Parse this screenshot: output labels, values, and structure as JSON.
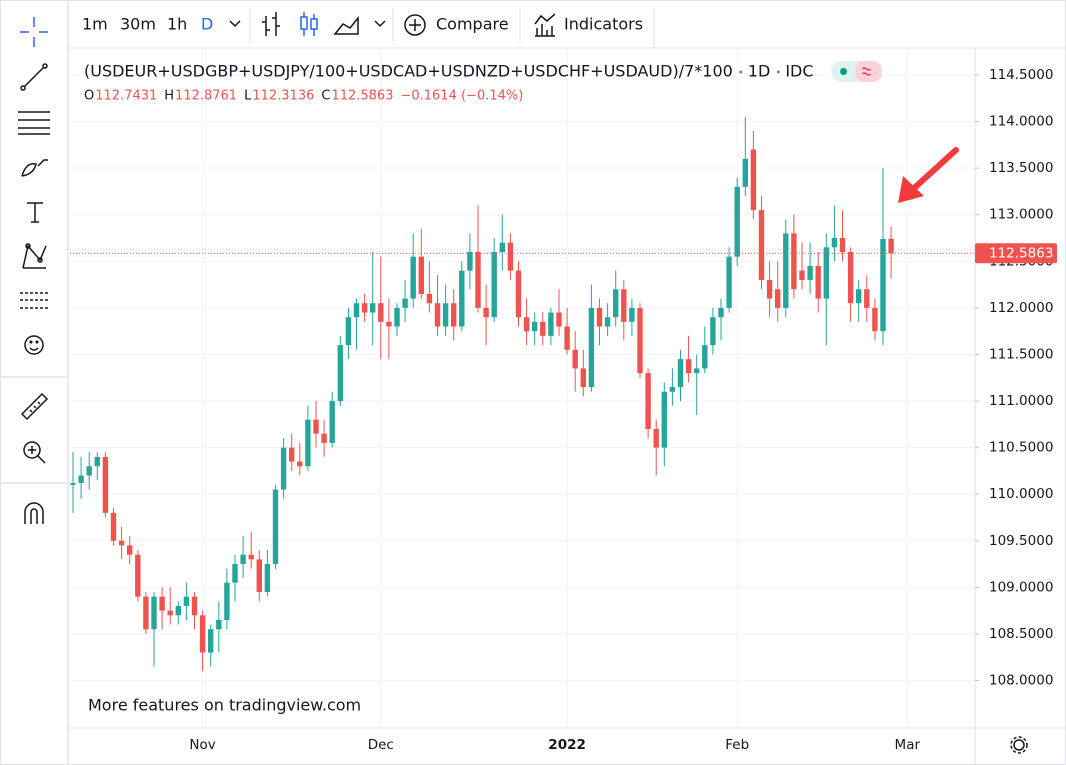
{
  "toolbar": {
    "intervals": [
      "1m",
      "30m",
      "1h",
      "D"
    ],
    "compare": "Compare",
    "indicators": "Indicators"
  },
  "chart_data": {
    "type": "candlestick",
    "title": "(USDEUR+USDGBP+USDJPY/100+USDCAD+USDNZD+USDCHF+USDAUD)/7*100",
    "interval": "1D",
    "source": "IDC",
    "legend": [
      {
        "label": "O",
        "value": 112.7431
      },
      {
        "label": "H",
        "value": 112.8761
      },
      {
        "label": "L",
        "value": 112.3136
      },
      {
        "label": "C",
        "value": 112.5863
      }
    ],
    "change": "−0.1614 (−0.14%)",
    "watermark": "More features on tradingview.com",
    "up_color": "#26a69a",
    "down_color": "#ef5350",
    "grid": true,
    "last_price": 112.5863,
    "categories": [
      null,
      null,
      null,
      null,
      null,
      null,
      null,
      null,
      null,
      null,
      null,
      null,
      null,
      null,
      null,
      null,
      "Nov",
      null,
      null,
      null,
      null,
      null,
      null,
      null,
      null,
      null,
      null,
      null,
      null,
      null,
      null,
      null,
      null,
      null,
      null,
      null,
      null,
      null,
      "Dec",
      null,
      null,
      null,
      null,
      null,
      null,
      null,
      null,
      null,
      null,
      null,
      null,
      null,
      null,
      null,
      null,
      null,
      null,
      null,
      null,
      null,
      null,
      "2022",
      null,
      null,
      null,
      null,
      null,
      null,
      null,
      null,
      null,
      null,
      null,
      null,
      null,
      null,
      null,
      null,
      null,
      null,
      null,
      null,
      "Feb",
      null,
      null,
      null,
      null,
      null,
      null,
      null,
      null,
      null,
      null,
      null,
      null,
      null,
      null,
      null,
      null,
      null,
      null,
      null,
      null,
      "Mar"
    ],
    "open": [
      110.1,
      110.12,
      110.2,
      110.3,
      110.4,
      109.8,
      109.5,
      109.45,
      109.35,
      108.9,
      108.55,
      108.9,
      108.75,
      108.7,
      108.8,
      108.9,
      108.7,
      108.3,
      108.55,
      108.65,
      109.05,
      109.25,
      109.35,
      109.3,
      108.95,
      109.25,
      110.05,
      110.5,
      110.35,
      110.3,
      110.8,
      110.65,
      110.55,
      111.0,
      111.6,
      111.9,
      112.05,
      111.95,
      112.05,
      111.85,
      111.8,
      112.0,
      112.1,
      112.55,
      112.15,
      112.05,
      111.8,
      112.05,
      111.8,
      112.4,
      112.6,
      112.0,
      111.9,
      112.6,
      112.7,
      112.4,
      111.9,
      111.75,
      111.85,
      111.7,
      111.95,
      111.8,
      111.55,
      111.35,
      111.15,
      112.0,
      111.8,
      111.9,
      112.2,
      111.85,
      112.0,
      111.3,
      110.7,
      110.5,
      111.1,
      111.15,
      111.45,
      111.3,
      111.35,
      111.6,
      111.9,
      112.0,
      112.55,
      113.3,
      113.7,
      113.05,
      112.3,
      112.2,
      112.0,
      112.8,
      112.4,
      112.3,
      112.45,
      112.1,
      112.65,
      112.75,
      112.6,
      112.05,
      112.2,
      112.0,
      111.75,
      112.7431,
      null,
      null
    ],
    "high": [
      110.45,
      110.4,
      110.45,
      110.45,
      110.45,
      109.85,
      109.65,
      109.55,
      109.4,
      108.95,
      108.95,
      109.0,
      109.0,
      108.85,
      109.05,
      108.95,
      108.75,
      108.6,
      108.85,
      109.2,
      109.35,
      109.55,
      109.6,
      109.4,
      109.4,
      110.1,
      110.6,
      110.65,
      110.55,
      110.95,
      111.0,
      110.8,
      111.1,
      111.7,
      112.0,
      112.1,
      112.15,
      112.6,
      112.55,
      112.1,
      112.05,
      112.3,
      112.8,
      112.85,
      112.5,
      112.35,
      112.25,
      112.2,
      112.5,
      112.8,
      113.1,
      112.25,
      112.75,
      113.0,
      112.8,
      112.5,
      112.1,
      111.95,
      111.95,
      112.0,
      112.2,
      112.0,
      111.75,
      111.55,
      112.25,
      112.1,
      112.05,
      112.4,
      112.3,
      112.1,
      112.05,
      111.35,
      110.8,
      111.2,
      111.35,
      111.55,
      111.7,
      111.5,
      111.8,
      112.0,
      112.1,
      112.65,
      113.4,
      114.05,
      113.9,
      113.2,
      112.5,
      112.5,
      112.95,
      113.0,
      112.7,
      112.7,
      112.6,
      112.8,
      113.1,
      113.05,
      112.65,
      112.3,
      112.35,
      112.1,
      113.5,
      112.8761,
      null,
      null
    ],
    "low": [
      109.8,
      109.95,
      110.05,
      110.15,
      109.75,
      109.45,
      109.3,
      109.25,
      108.85,
      108.5,
      108.15,
      108.55,
      108.6,
      108.6,
      108.65,
      108.55,
      108.1,
      108.15,
      108.3,
      108.55,
      108.85,
      109.1,
      109.2,
      108.85,
      108.9,
      109.2,
      109.95,
      110.25,
      110.2,
      110.25,
      110.5,
      110.4,
      110.5,
      110.95,
      111.45,
      111.55,
      111.85,
      111.6,
      111.45,
      111.45,
      111.7,
      111.85,
      112.0,
      112.1,
      111.95,
      111.7,
      111.7,
      111.65,
      111.75,
      112.2,
      111.95,
      111.6,
      111.85,
      112.4,
      112.3,
      111.8,
      111.6,
      111.6,
      111.6,
      111.6,
      111.7,
      111.5,
      111.1,
      111.05,
      111.1,
      111.6,
      111.7,
      111.8,
      111.65,
      111.7,
      111.25,
      110.6,
      110.2,
      110.3,
      110.95,
      111.0,
      111.2,
      110.85,
      111.3,
      111.5,
      111.65,
      111.95,
      112.45,
      113.2,
      112.95,
      112.2,
      111.9,
      111.85,
      111.9,
      112.1,
      112.2,
      112.15,
      111.95,
      111.6,
      112.5,
      112.5,
      111.85,
      111.85,
      111.85,
      111.65,
      111.6,
      112.3136,
      null,
      null
    ],
    "close": [
      110.12,
      110.2,
      110.3,
      110.4,
      109.8,
      109.5,
      109.45,
      109.35,
      108.9,
      108.55,
      108.9,
      108.75,
      108.7,
      108.8,
      108.9,
      108.7,
      108.3,
      108.55,
      108.65,
      109.05,
      109.25,
      109.35,
      109.3,
      108.95,
      109.25,
      110.05,
      110.5,
      110.35,
      110.3,
      110.8,
      110.65,
      110.55,
      111.0,
      111.6,
      111.9,
      112.05,
      111.95,
      112.05,
      111.85,
      111.8,
      112.0,
      112.1,
      112.55,
      112.15,
      112.05,
      111.8,
      112.05,
      111.8,
      112.4,
      112.6,
      112.0,
      111.9,
      112.6,
      112.7,
      112.4,
      111.9,
      111.75,
      111.85,
      111.7,
      111.95,
      111.8,
      111.55,
      111.35,
      111.15,
      112.0,
      111.8,
      111.9,
      112.2,
      111.85,
      112.0,
      111.3,
      110.7,
      110.5,
      111.1,
      111.15,
      111.45,
      111.3,
      111.35,
      111.6,
      111.9,
      112.0,
      112.55,
      113.3,
      113.6,
      113.05,
      112.3,
      112.1,
      112.0,
      112.8,
      112.2,
      112.3,
      112.45,
      112.1,
      112.65,
      112.75,
      112.6,
      112.05,
      112.2,
      112.0,
      111.75,
      112.74,
      112.5863,
      null,
      null
    ],
    "ylim": [
      107.49,
      114.79
    ],
    "yticks": [
      {
        "value": 108.0,
        "label": "108.0000"
      },
      {
        "value": 108.5,
        "label": "108.5000"
      },
      {
        "value": 109.0,
        "label": "109.0000"
      },
      {
        "value": 109.5,
        "label": "109.5000"
      },
      {
        "value": 110.0,
        "label": "110.0000"
      },
      {
        "value": 110.5,
        "label": "110.5000"
      },
      {
        "value": 111.0,
        "label": "111.0000"
      },
      {
        "value": 111.5,
        "label": "111.5000"
      },
      {
        "value": 112.0,
        "label": "112.0000"
      },
      {
        "value": 112.5,
        "label": "112.5000"
      },
      {
        "value": 113.0,
        "label": "113.0000"
      },
      {
        "value": 113.5,
        "label": "113.5000"
      },
      {
        "value": 114.0,
        "label": "114.0000"
      },
      {
        "value": 114.5,
        "label": "114.5000"
      }
    ]
  }
}
